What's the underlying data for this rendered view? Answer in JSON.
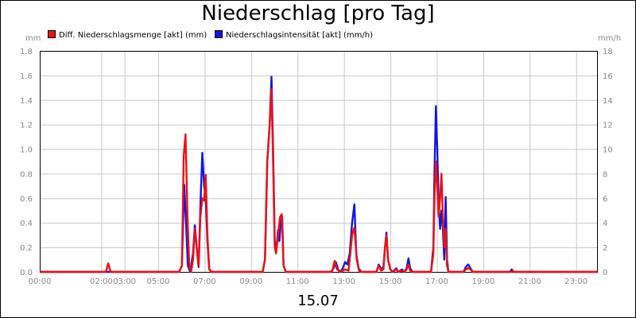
{
  "chart_data": {
    "type": "line",
    "title": "Niederschlag [pro Tag]",
    "date_label": "15.07",
    "y_left_unit": "mm",
    "y_right_unit": "mm/h",
    "ylim_left": [
      0,
      1.8
    ],
    "ylim_right": [
      0,
      18
    ],
    "y_left_ticks": [
      "0.0",
      "0.2",
      "0.4",
      "0.6",
      "0.8",
      "1.0",
      "1.2",
      "1.4",
      "1.6",
      "1.8"
    ],
    "y_right_ticks": [
      "0",
      "2",
      "4",
      "6",
      "8",
      "10",
      "12",
      "14",
      "16",
      "18"
    ],
    "xlim_hours": [
      0,
      24
    ],
    "x_ticks": [
      {
        "label": "00:00",
        "hour": 0
      },
      {
        "label": "02:00",
        "hour": 2.65
      },
      {
        "label": "03:00",
        "hour": 3.65
      },
      {
        "label": "05:00",
        "hour": 5.1
      },
      {
        "label": "07:00",
        "hour": 7.1
      },
      {
        "label": "09:00",
        "hour": 9.1
      },
      {
        "label": "11:00",
        "hour": 11.1
      },
      {
        "label": "13:00",
        "hour": 13.1
      },
      {
        "label": "15:00",
        "hour": 15.1
      },
      {
        "label": "17:00",
        "hour": 17.1
      },
      {
        "label": "19:00",
        "hour": 19.1
      },
      {
        "label": "21:00",
        "hour": 21.1
      },
      {
        "label": "23:00",
        "hour": 23.1
      }
    ],
    "grid": true,
    "legend_position": "top-left",
    "series": [
      {
        "name": "Diff. Niederschlagsmenge [akt] (mm)",
        "color": "#ee1111",
        "axis": "left",
        "points": [
          [
            0,
            0
          ],
          [
            2.85,
            0
          ],
          [
            2.95,
            0.07
          ],
          [
            3.05,
            0
          ],
          [
            6.0,
            0
          ],
          [
            6.12,
            0.05
          ],
          [
            6.2,
            0.95
          ],
          [
            6.28,
            1.12
          ],
          [
            6.36,
            0.45
          ],
          [
            6.44,
            0.05
          ],
          [
            6.52,
            0
          ],
          [
            6.6,
            0.1
          ],
          [
            6.68,
            0.35
          ],
          [
            6.76,
            0.2
          ],
          [
            6.84,
            0.05
          ],
          [
            6.92,
            0.45
          ],
          [
            7.0,
            0.6
          ],
          [
            7.08,
            0.58
          ],
          [
            7.15,
            0.79
          ],
          [
            7.22,
            0.3
          ],
          [
            7.3,
            0.02
          ],
          [
            7.4,
            0
          ],
          [
            9.6,
            0
          ],
          [
            9.7,
            0.1
          ],
          [
            9.8,
            0.9
          ],
          [
            9.9,
            1.2
          ],
          [
            9.98,
            1.49
          ],
          [
            10.05,
            0.9
          ],
          [
            10.12,
            0.2
          ],
          [
            10.18,
            0.15
          ],
          [
            10.26,
            0.3
          ],
          [
            10.35,
            0.45
          ],
          [
            10.42,
            0.47
          ],
          [
            10.5,
            0.05
          ],
          [
            10.6,
            0
          ],
          [
            12.5,
            0
          ],
          [
            12.6,
            0.01
          ],
          [
            12.7,
            0.09
          ],
          [
            12.8,
            0.02
          ],
          [
            12.95,
            0
          ],
          [
            13.15,
            0.02
          ],
          [
            13.3,
            0.01
          ],
          [
            13.45,
            0.3
          ],
          [
            13.55,
            0.36
          ],
          [
            13.65,
            0.1
          ],
          [
            13.75,
            0.01
          ],
          [
            13.85,
            0
          ],
          [
            14.5,
            0
          ],
          [
            14.6,
            0.05
          ],
          [
            14.7,
            0.01
          ],
          [
            14.8,
            0.02
          ],
          [
            14.87,
            0.2
          ],
          [
            14.93,
            0.3
          ],
          [
            15.0,
            0.1
          ],
          [
            15.1,
            0.02
          ],
          [
            15.2,
            0
          ],
          [
            15.35,
            0.02
          ],
          [
            15.45,
            0
          ],
          [
            15.6,
            0.01
          ],
          [
            15.7,
            0
          ],
          [
            15.8,
            0.02
          ],
          [
            15.88,
            0.06
          ],
          [
            15.95,
            0.01
          ],
          [
            16.05,
            0
          ],
          [
            16.85,
            0
          ],
          [
            16.95,
            0.15
          ],
          [
            17.0,
            0.6
          ],
          [
            17.06,
            0.9
          ],
          [
            17.12,
            0.7
          ],
          [
            17.18,
            0.45
          ],
          [
            17.24,
            0.6
          ],
          [
            17.3,
            0.8
          ],
          [
            17.36,
            0.45
          ],
          [
            17.42,
            0.2
          ],
          [
            17.48,
            0.35
          ],
          [
            17.54,
            0.05
          ],
          [
            17.6,
            0
          ],
          [
            18.25,
            0
          ],
          [
            18.35,
            0.02
          ],
          [
            18.45,
            0.03
          ],
          [
            18.55,
            0.02
          ],
          [
            18.65,
            0
          ],
          [
            20.3,
            0
          ],
          [
            20.36,
            0.01
          ],
          [
            20.42,
            0
          ],
          [
            24,
            0
          ]
        ]
      },
      {
        "name": "Niederschlagsintensität [akt] (mm/h)",
        "color": "#1515dd",
        "axis": "right",
        "points": [
          [
            0,
            0
          ],
          [
            6.0,
            0
          ],
          [
            6.12,
            0.5
          ],
          [
            6.22,
            7.1
          ],
          [
            6.3,
            4.0
          ],
          [
            6.38,
            0.5
          ],
          [
            6.48,
            0
          ],
          [
            6.6,
            1.5
          ],
          [
            6.68,
            3.8
          ],
          [
            6.76,
            2.0
          ],
          [
            6.84,
            0.4
          ],
          [
            6.93,
            6.0
          ],
          [
            7.0,
            9.7
          ],
          [
            7.08,
            7.0
          ],
          [
            7.15,
            6.0
          ],
          [
            7.22,
            2.5
          ],
          [
            7.3,
            0.2
          ],
          [
            7.4,
            0
          ],
          [
            9.6,
            0
          ],
          [
            9.7,
            1.0
          ],
          [
            9.8,
            9.0
          ],
          [
            9.9,
            12.0
          ],
          [
            9.98,
            15.9
          ],
          [
            10.05,
            10.0
          ],
          [
            10.12,
            2.5
          ],
          [
            10.2,
            2.0
          ],
          [
            10.26,
            3.4
          ],
          [
            10.32,
            2.5
          ],
          [
            10.38,
            4.0
          ],
          [
            10.44,
            4.5
          ],
          [
            10.5,
            0.5
          ],
          [
            10.6,
            0
          ],
          [
            12.55,
            0
          ],
          [
            12.65,
            0.3
          ],
          [
            12.75,
            0.8
          ],
          [
            12.85,
            0.2
          ],
          [
            12.95,
            0
          ],
          [
            13.05,
            0.3
          ],
          [
            13.15,
            0.8
          ],
          [
            13.25,
            0.6
          ],
          [
            13.35,
            1.5
          ],
          [
            13.45,
            4.0
          ],
          [
            13.55,
            5.5
          ],
          [
            13.63,
            1.5
          ],
          [
            13.73,
            0.3
          ],
          [
            13.85,
            0
          ],
          [
            14.5,
            0
          ],
          [
            14.6,
            0.6
          ],
          [
            14.7,
            0.2
          ],
          [
            14.8,
            0.4
          ],
          [
            14.87,
            2.0
          ],
          [
            14.93,
            3.2
          ],
          [
            15.0,
            1.0
          ],
          [
            15.1,
            0.2
          ],
          [
            15.2,
            0
          ],
          [
            15.35,
            0.3
          ],
          [
            15.45,
            0
          ],
          [
            15.6,
            0.2
          ],
          [
            15.7,
            0
          ],
          [
            15.8,
            0.3
          ],
          [
            15.88,
            1.1
          ],
          [
            15.95,
            0.3
          ],
          [
            16.05,
            0
          ],
          [
            16.85,
            0
          ],
          [
            16.95,
            2.0
          ],
          [
            17.0,
            8.0
          ],
          [
            17.06,
            13.5
          ],
          [
            17.12,
            10.0
          ],
          [
            17.18,
            5.5
          ],
          [
            17.24,
            3.5
          ],
          [
            17.3,
            5.0
          ],
          [
            17.36,
            3.5
          ],
          [
            17.42,
            1.0
          ],
          [
            17.48,
            6.1
          ],
          [
            17.54,
            1.0
          ],
          [
            17.6,
            0
          ],
          [
            18.25,
            0
          ],
          [
            18.35,
            0.4
          ],
          [
            18.45,
            0.6
          ],
          [
            18.55,
            0.3
          ],
          [
            18.65,
            0
          ],
          [
            20.25,
            0
          ],
          [
            20.33,
            0.2
          ],
          [
            20.4,
            0
          ],
          [
            24,
            0
          ]
        ]
      }
    ]
  }
}
